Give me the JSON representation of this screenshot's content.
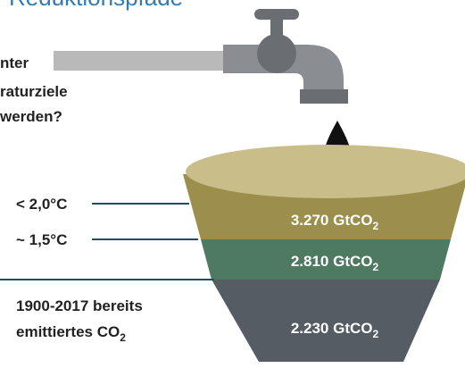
{
  "title": "Reduktionspfade",
  "question": [
    "nter",
    "raturziele",
    "werden?"
  ],
  "levels": [
    {
      "label": "< 2,0°C",
      "amount": {
        "text": "3.270 GtCO",
        "sub": "2"
      }
    },
    {
      "label": "~ 1,5°C",
      "amount": {
        "text": "2.810 GtCO",
        "sub": "2"
      }
    },
    {
      "label": [
        "1900-2017 bereits",
        "emittiertes CO"
      ],
      "label_sub": "2",
      "amount": {
        "text": "2.230 GtCO",
        "sub": "2"
      }
    }
  ]
}
